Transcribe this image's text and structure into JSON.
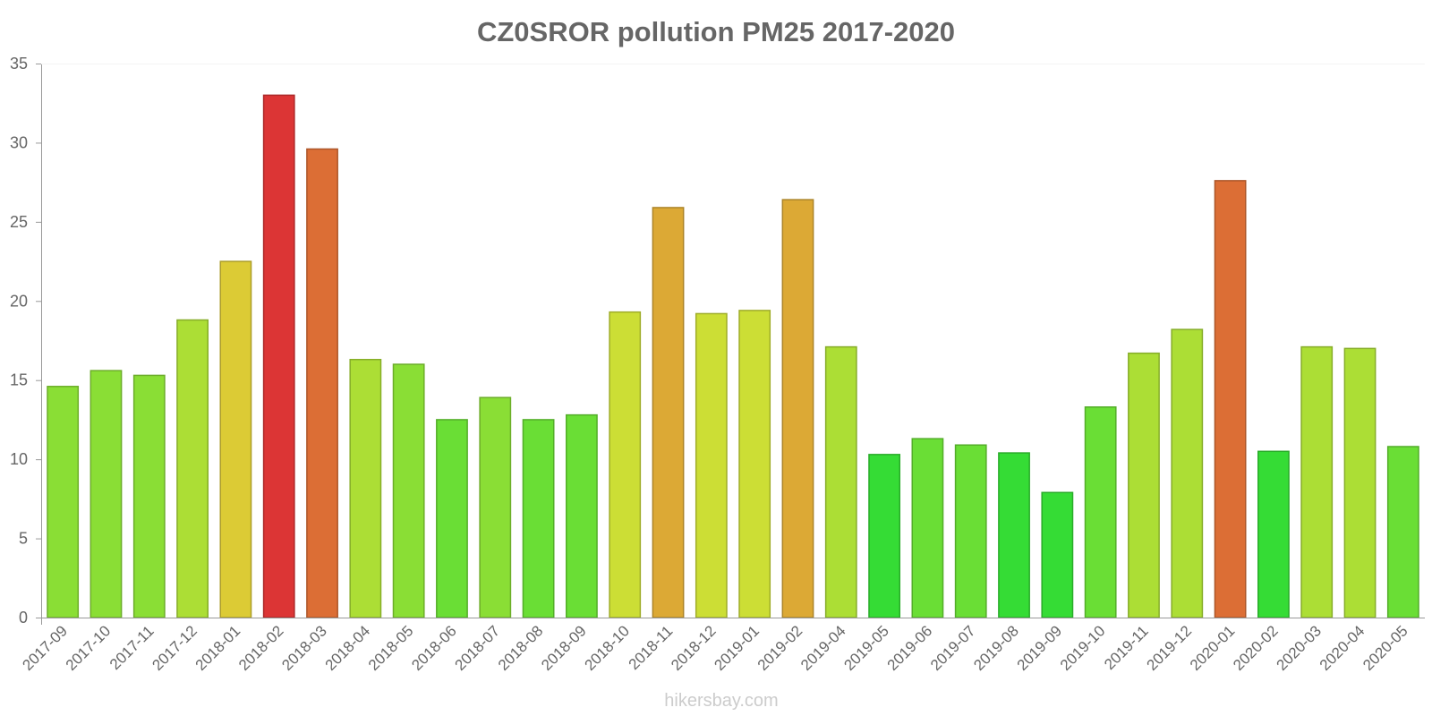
{
  "chart_data": {
    "type": "bar",
    "title": "CZ0SROR pollution PM25 2017-2020",
    "xlabel": "",
    "ylabel": "",
    "ylim": [
      0,
      35
    ],
    "yticks": [
      0,
      5,
      10,
      15,
      20,
      25,
      30,
      35
    ],
    "grid": false,
    "legend": "none",
    "categories": [
      "2017-09",
      "2017-10",
      "2017-11",
      "2017-12",
      "2018-01",
      "2018-02",
      "2018-03",
      "2018-04",
      "2018-05",
      "2018-06",
      "2018-07",
      "2018-08",
      "2018-09",
      "2018-10",
      "2018-11",
      "2018-12",
      "2019-01",
      "2019-02",
      "2019-04",
      "2019-05",
      "2019-06",
      "2019-07",
      "2019-08",
      "2019-09",
      "2019-10",
      "2019-11",
      "2019-12",
      "2020-01",
      "2020-02",
      "2020-03",
      "2020-04",
      "2020-05"
    ],
    "values": [
      14.6,
      15.6,
      15.3,
      18.8,
      22.5,
      33.0,
      29.6,
      16.3,
      16.0,
      12.5,
      13.9,
      12.5,
      12.8,
      19.3,
      25.9,
      19.2,
      19.4,
      26.4,
      17.1,
      10.3,
      11.3,
      10.9,
      10.4,
      7.9,
      13.3,
      16.7,
      18.2,
      27.6,
      10.5,
      17.1,
      17.0,
      10.8
    ],
    "bar_colors": [
      "#8ade35",
      "#8ade35",
      "#8ade35",
      "#acde35",
      "#dccb35",
      "#dc3535",
      "#dc6e35",
      "#acde35",
      "#8ade35",
      "#6ade35",
      "#8ade35",
      "#6ade35",
      "#6ade35",
      "#ccde35",
      "#dca935",
      "#ccde35",
      "#ccde35",
      "#dca935",
      "#acde35",
      "#35dc35",
      "#6ade35",
      "#6ade35",
      "#35dc35",
      "#35dc35",
      "#6ade35",
      "#acde35",
      "#acde35",
      "#dc6e35",
      "#35dc35",
      "#acde35",
      "#acde35",
      "#6ade35"
    ],
    "credit": "hikersbay.com"
  }
}
